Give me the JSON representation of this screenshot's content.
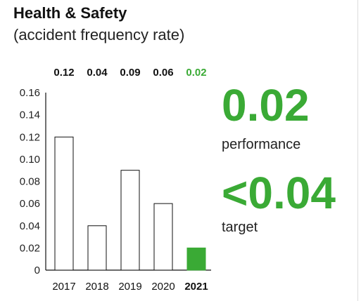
{
  "header": {
    "title": "Health & Safety",
    "subtitle": "(accident frequency rate)"
  },
  "kpi": {
    "performance_value": "0.02",
    "performance_label": "performance",
    "target_value": "<0.04",
    "target_label": "target"
  },
  "colors": {
    "accent": "#3aaa35",
    "bar_stroke": "#111111",
    "text": "#222222"
  },
  "chart_data": {
    "type": "bar",
    "title": "",
    "xlabel": "",
    "ylabel": "",
    "categories": [
      "2017",
      "2018",
      "2019",
      "2020",
      "2021"
    ],
    "values": [
      0.12,
      0.04,
      0.09,
      0.06,
      0.02
    ],
    "value_labels": [
      "0.12",
      "0.04",
      "0.09",
      "0.06",
      "0.02"
    ],
    "highlight_category": "2021",
    "ylim": [
      0,
      0.16
    ],
    "yticks": [
      0,
      0.02,
      0.04,
      0.06,
      0.08,
      0.1,
      0.12,
      0.14,
      0.16
    ],
    "ytick_labels": [
      "0",
      "0.02",
      "0.04",
      "0.06",
      "0.08",
      "0.10",
      "0.12",
      "0.14",
      "0.16"
    ],
    "grid": false,
    "legend": "none"
  }
}
